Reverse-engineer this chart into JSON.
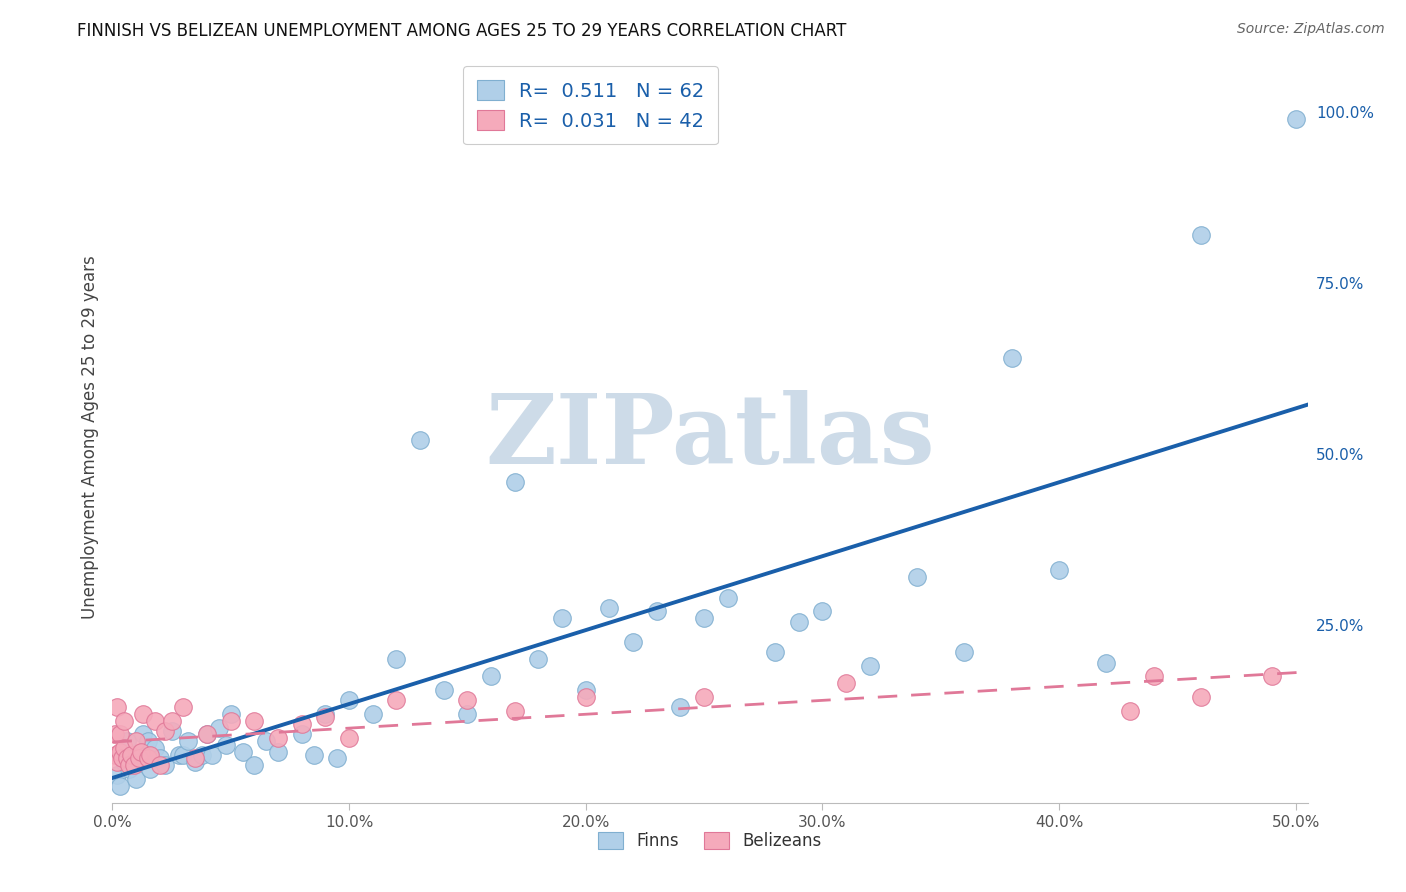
{
  "title": "FINNISH VS BELIZEAN UNEMPLOYMENT AMONG AGES 25 TO 29 YEARS CORRELATION CHART",
  "source": "Source: ZipAtlas.com",
  "ylabel": "Unemployment Among Ages 25 to 29 years",
  "xlim": [
    0.0,
    0.505
  ],
  "ylim": [
    -0.01,
    1.06
  ],
  "xtick_labels": [
    "0.0%",
    "10.0%",
    "20.0%",
    "30.0%",
    "40.0%",
    "50.0%"
  ],
  "xtick_vals": [
    0.0,
    0.1,
    0.2,
    0.3,
    0.4,
    0.5
  ],
  "ytick_labels": [
    "25.0%",
    "50.0%",
    "75.0%",
    "100.0%"
  ],
  "ytick_vals": [
    0.25,
    0.5,
    0.75,
    1.0
  ],
  "finn_color": "#b0cfe8",
  "finn_edge_color": "#80afd0",
  "belize_color": "#f5aabb",
  "belize_edge_color": "#e07898",
  "finn_line_color": "#1a5faa",
  "belize_line_color": "#e07898",
  "R_finn": "0.511",
  "N_finn": "62",
  "R_belize": "0.031",
  "N_belize": "42",
  "watermark_text": "ZIPatlas",
  "watermark_color": "#cddbe8",
  "grid_color": "#cccccc",
  "legend_text_color": "#1a5faa",
  "background_color": "#ffffff",
  "finn_x": [
    0.002,
    0.003,
    0.005,
    0.006,
    0.007,
    0.008,
    0.009,
    0.01,
    0.012,
    0.013,
    0.015,
    0.016,
    0.018,
    0.02,
    0.022,
    0.025,
    0.028,
    0.03,
    0.032,
    0.035,
    0.038,
    0.04,
    0.042,
    0.045,
    0.048,
    0.05,
    0.055,
    0.06,
    0.065,
    0.07,
    0.08,
    0.085,
    0.09,
    0.095,
    0.1,
    0.11,
    0.12,
    0.13,
    0.14,
    0.15,
    0.16,
    0.17,
    0.18,
    0.19,
    0.2,
    0.21,
    0.22,
    0.23,
    0.24,
    0.25,
    0.26,
    0.28,
    0.29,
    0.3,
    0.32,
    0.34,
    0.36,
    0.38,
    0.4,
    0.42,
    0.46,
    0.5
  ],
  "finn_y": [
    0.03,
    0.015,
    0.05,
    0.08,
    0.04,
    0.06,
    0.045,
    0.025,
    0.06,
    0.09,
    0.08,
    0.04,
    0.07,
    0.055,
    0.045,
    0.095,
    0.06,
    0.06,
    0.08,
    0.05,
    0.06,
    0.09,
    0.06,
    0.1,
    0.075,
    0.12,
    0.065,
    0.045,
    0.08,
    0.065,
    0.09,
    0.06,
    0.12,
    0.055,
    0.14,
    0.12,
    0.2,
    0.52,
    0.155,
    0.12,
    0.175,
    0.46,
    0.2,
    0.26,
    0.155,
    0.275,
    0.225,
    0.27,
    0.13,
    0.26,
    0.29,
    0.21,
    0.255,
    0.27,
    0.19,
    0.32,
    0.21,
    0.64,
    0.33,
    0.195,
    0.82,
    0.99
  ],
  "belize_x": [
    0.001,
    0.001,
    0.002,
    0.002,
    0.003,
    0.003,
    0.004,
    0.005,
    0.005,
    0.006,
    0.007,
    0.008,
    0.009,
    0.01,
    0.011,
    0.012,
    0.013,
    0.015,
    0.016,
    0.018,
    0.02,
    0.022,
    0.025,
    0.03,
    0.035,
    0.04,
    0.05,
    0.06,
    0.07,
    0.08,
    0.09,
    0.1,
    0.12,
    0.15,
    0.17,
    0.2,
    0.25,
    0.31,
    0.43,
    0.44,
    0.46,
    0.49
  ],
  "belize_y": [
    0.06,
    0.09,
    0.13,
    0.05,
    0.065,
    0.09,
    0.055,
    0.07,
    0.11,
    0.055,
    0.045,
    0.06,
    0.045,
    0.08,
    0.055,
    0.065,
    0.12,
    0.055,
    0.06,
    0.11,
    0.045,
    0.095,
    0.11,
    0.13,
    0.055,
    0.09,
    0.11,
    0.11,
    0.085,
    0.105,
    0.115,
    0.085,
    0.14,
    0.14,
    0.125,
    0.145,
    0.145,
    0.165,
    0.125,
    0.175,
    0.145,
    0.175
  ]
}
